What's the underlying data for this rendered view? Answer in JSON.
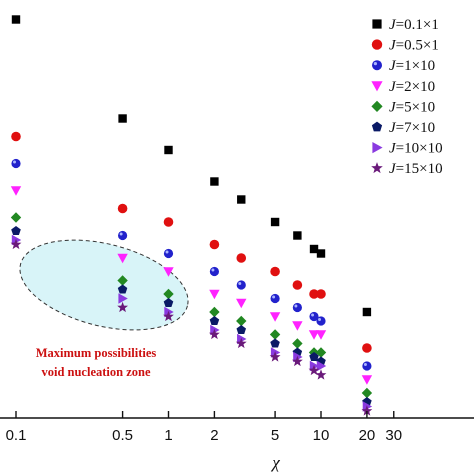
{
  "chart_data": {
    "type": "scatter",
    "xlabel": "χ",
    "x_scale": "log",
    "xlim": [
      0.08,
      40
    ],
    "x_ticks": [
      0.1,
      0.5,
      1,
      2,
      5,
      10,
      20,
      30
    ],
    "x_tick_labels": [
      "0.1",
      "0.5",
      "1",
      "2",
      "5",
      "10",
      "20",
      "30"
    ],
    "x": [
      0.1,
      0.5,
      1,
      2,
      3,
      5,
      7,
      9,
      10,
      20
    ],
    "series": [
      {
        "name": "J=0.1×1",
        "marker": "square",
        "color": "#000000",
        "values": [
          0.99,
          0.77,
          0.7,
          0.63,
          0.59,
          0.54,
          0.51,
          0.48,
          0.47,
          0.34
        ]
      },
      {
        "name": "J=0.5×1",
        "marker": "circle",
        "color": "#e01010",
        "values": [
          0.73,
          0.57,
          0.54,
          0.49,
          0.46,
          0.43,
          0.4,
          0.38,
          0.38,
          0.26
        ]
      },
      {
        "name": "J=1×10",
        "marker": "sphere",
        "color": "#2222cc",
        "values": [
          0.67,
          0.51,
          0.47,
          0.43,
          0.4,
          0.37,
          0.35,
          0.33,
          0.32,
          0.22
        ]
      },
      {
        "name": "J=2×10",
        "marker": "triangle-down",
        "color": "#ff22ff",
        "values": [
          0.61,
          0.46,
          0.43,
          0.38,
          0.36,
          0.33,
          0.31,
          0.29,
          0.29,
          0.19
        ]
      },
      {
        "name": "J=5×10",
        "marker": "diamond",
        "color": "#228822",
        "values": [
          0.55,
          0.41,
          0.38,
          0.34,
          0.32,
          0.29,
          0.27,
          0.25,
          0.25,
          0.16
        ]
      },
      {
        "name": "J=7×10",
        "marker": "pentagon",
        "color": "#0a1a66",
        "values": [
          0.52,
          0.39,
          0.36,
          0.32,
          0.3,
          0.27,
          0.25,
          0.24,
          0.23,
          0.14
        ]
      },
      {
        "name": "J=10×10",
        "marker": "triangle-right",
        "color": "#8a3ae0",
        "values": [
          0.5,
          0.37,
          0.34,
          0.3,
          0.28,
          0.25,
          0.24,
          0.22,
          0.22,
          0.13
        ]
      },
      {
        "name": "J=15×10",
        "marker": "star",
        "color": "#6a1a7a",
        "values": [
          0.49,
          0.35,
          0.33,
          0.29,
          0.27,
          0.24,
          0.23,
          0.21,
          0.2,
          0.12
        ]
      }
    ],
    "annotation": {
      "line1": "Maximum possibilities",
      "line2": "void nucleation zone",
      "color": "#cc1111",
      "ellipse_fill": "#d8f4f8"
    },
    "legend_position": "top-right"
  }
}
